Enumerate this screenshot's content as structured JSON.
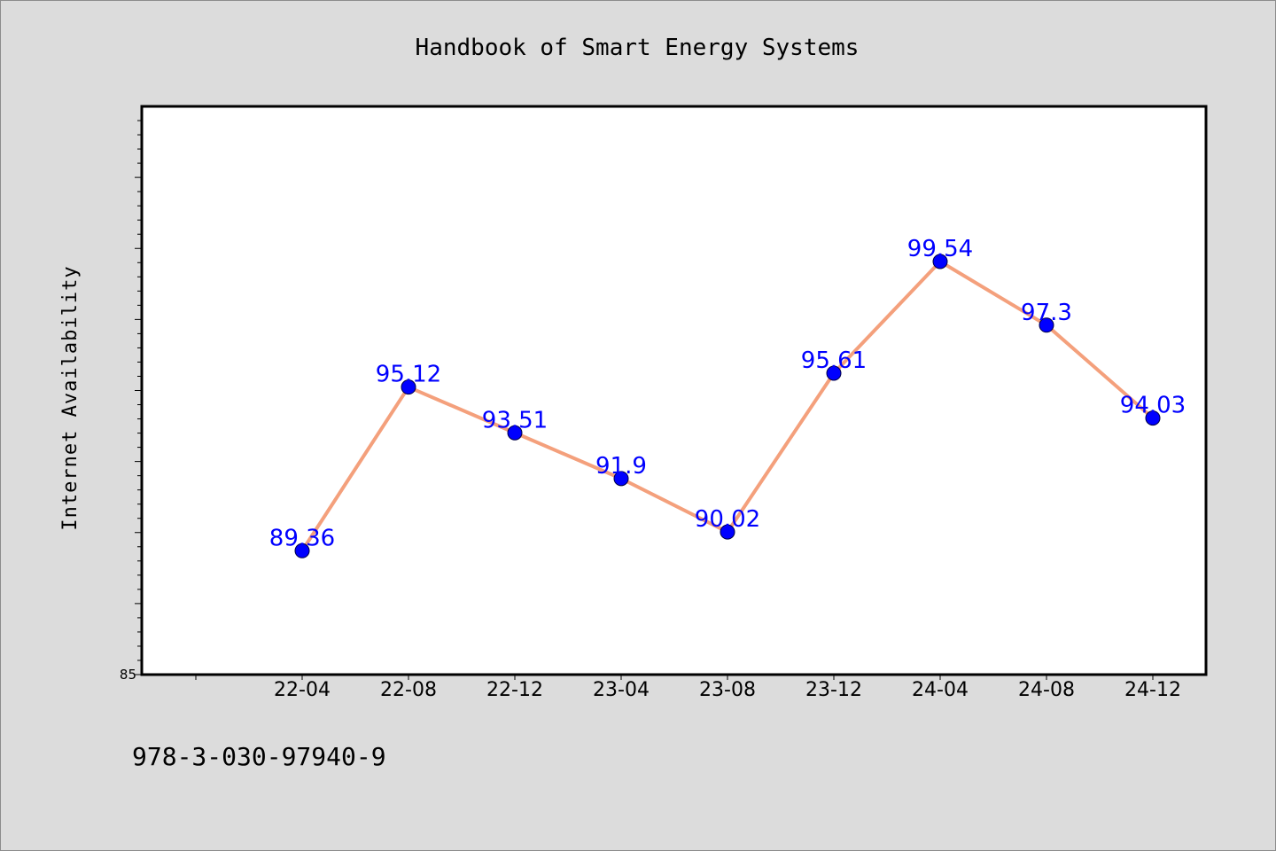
{
  "chart_data": {
    "type": "line",
    "title": "Handbook of Smart Energy Systems",
    "xlabel": "",
    "ylabel": "Internet Availability",
    "categories": [
      "22-04",
      "22-08",
      "22-12",
      "23-04",
      "23-08",
      "23-12",
      "24-04",
      "24-08",
      "24-12"
    ],
    "series": [
      {
        "values": [
          89.36,
          95.12,
          93.51,
          91.9,
          90.02,
          95.61,
          99.54,
          97.3,
          94.03
        ]
      }
    ],
    "data_labels": [
      "89.36",
      "95.12",
      "93.51",
      "91.9",
      "90.02",
      "95.61",
      "99.54",
      "97.3",
      "94.03"
    ],
    "ylim": [
      85,
      105
    ],
    "ytick_labels": [
      "85"
    ],
    "grid": false,
    "legend": "none",
    "colors": {
      "line": "#f4a07c",
      "marker": "#0000ff",
      "data_label": "#0000ff",
      "plot_background": "#ffffff",
      "figure_background": "#dcdcdc"
    }
  },
  "footer": {
    "isbn": "978-3-030-97940-9"
  }
}
